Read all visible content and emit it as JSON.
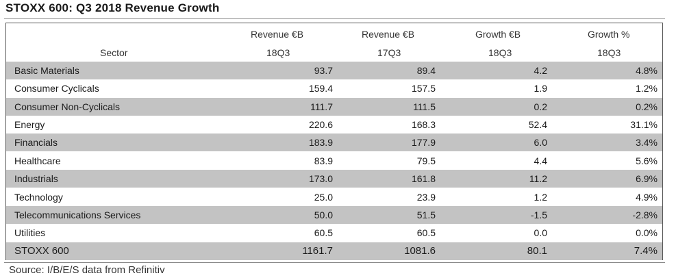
{
  "title": "STOXX 600: Q3 2018 Revenue Growth",
  "headers": {
    "sector": "Sector",
    "rev18_line1": "Revenue €B",
    "rev18_line2": "18Q3",
    "rev17_line1": "Revenue €B",
    "rev17_line2": "17Q3",
    "growth_line1": "Growth €B",
    "growth_line2": "18Q3",
    "pct_line1": "Growth %",
    "pct_line2": "18Q3"
  },
  "rows": [
    {
      "sector": "Basic Materials",
      "rev18": "93.7",
      "rev17": "89.4",
      "growth": "4.2",
      "pct": "4.8%"
    },
    {
      "sector": "Consumer Cyclicals",
      "rev18": "159.4",
      "rev17": "157.5",
      "growth": "1.9",
      "pct": "1.2%"
    },
    {
      "sector": "Consumer Non-Cyclicals",
      "rev18": "111.7",
      "rev17": "111.5",
      "growth": "0.2",
      "pct": "0.2%"
    },
    {
      "sector": "Energy",
      "rev18": "220.6",
      "rev17": "168.3",
      "growth": "52.4",
      "pct": "31.1%"
    },
    {
      "sector": "Financials",
      "rev18": "183.9",
      "rev17": "177.9",
      "growth": "6.0",
      "pct": "3.4%"
    },
    {
      "sector": "Healthcare",
      "rev18": "83.9",
      "rev17": "79.5",
      "growth": "4.4",
      "pct": "5.6%"
    },
    {
      "sector": "Industrials",
      "rev18": "173.0",
      "rev17": "161.8",
      "growth": "11.2",
      "pct": "6.9%"
    },
    {
      "sector": "Technology",
      "rev18": "25.0",
      "rev17": "23.9",
      "growth": "1.2",
      "pct": "4.9%"
    },
    {
      "sector": "Telecommunications Services",
      "rev18": "50.0",
      "rev17": "51.5",
      "growth": "-1.5",
      "pct": "-2.8%"
    },
    {
      "sector": "Utilities",
      "rev18": "60.5",
      "rev17": "60.5",
      "growth": "0.0",
      "pct": "0.0%"
    }
  ],
  "total": {
    "sector": "STOXX 600",
    "rev18": "1161.7",
    "rev17": "1081.6",
    "growth": "80.1",
    "pct": "7.4%"
  },
  "source": "Source: I/B/E/S data from Refinitiv",
  "colors": {
    "shaded_row": "#c3c3c3",
    "frame": "#555555"
  }
}
